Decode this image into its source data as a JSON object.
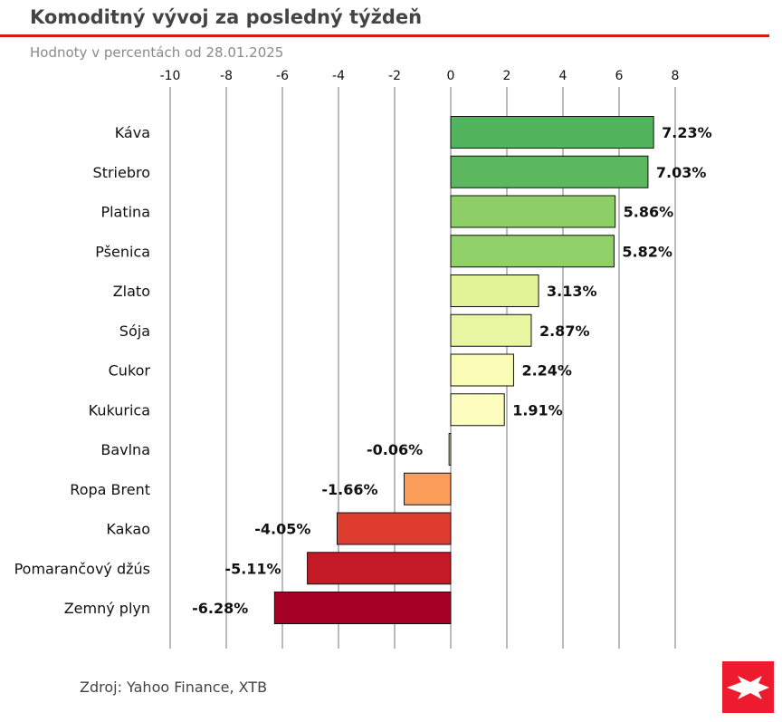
{
  "header": {
    "title": "Komoditný vývoj za posledný týždeň",
    "subtitle": "Hodnoty v percentách od 28.01.2025"
  },
  "footer": {
    "source": "Zdroj: Yahoo Finance, XTB"
  },
  "logo": {
    "icon": "xtb-x-logo-icon",
    "color": "#ee1b2e"
  },
  "colors": {
    "accent": "#d21e16",
    "grid": "#555555",
    "bar_edge": "#111111"
  },
  "chart_data": {
    "type": "bar",
    "orientation": "horizontal",
    "title": "Komoditný vývoj za posledný týždeň",
    "subtitle": "Hodnoty v percentách od 28.01.2025",
    "xlim": [
      -10,
      10
    ],
    "xticks": [
      -10,
      -8,
      -6,
      -4,
      -2,
      0,
      2,
      4,
      6,
      8
    ],
    "xaxis_position": "top",
    "grid": "vertical",
    "categories": [
      "Káva",
      "Striebro",
      "Platina",
      "Pšenica",
      "Zlato",
      "Sója",
      "Cukor",
      "Kukurica",
      "Bavlna",
      "Ropa Brent",
      "Kakao",
      "Pomarančový džús",
      "Zemný plyn"
    ],
    "values": [
      7.23,
      7.03,
      5.86,
      5.82,
      3.13,
      2.87,
      2.24,
      1.91,
      -0.06,
      -1.66,
      -4.05,
      -5.11,
      -6.28
    ],
    "value_labels": [
      "7.23%",
      "7.03%",
      "5.86%",
      "5.82%",
      "3.13%",
      "2.87%",
      "2.24%",
      "1.91%",
      "-0.06%",
      "-1.66%",
      "-4.05%",
      "-5.11%",
      "-6.28%"
    ],
    "bar_colors": [
      "#52b55d",
      "#5cb85e",
      "#8dce67",
      "#90d068",
      "#e2f397",
      "#e9f6a1",
      "#fafbb5",
      "#fdfdbf",
      "#fdf1ae",
      "#fb9d59",
      "#dd3c2e",
      "#c41a28",
      "#a50026"
    ]
  }
}
